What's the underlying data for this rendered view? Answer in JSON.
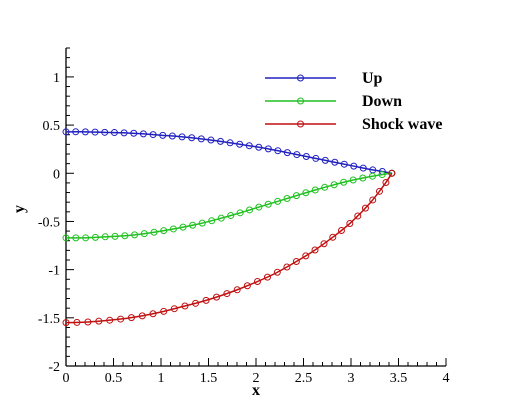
{
  "chart_data": {
    "type": "line",
    "title": "",
    "xlabel": "x",
    "ylabel": "y",
    "xlim": [
      0,
      4
    ],
    "ylim": [
      -2,
      1.3
    ],
    "xticks": [
      0,
      0.5,
      1,
      1.5,
      2,
      2.5,
      3,
      3.5,
      4
    ],
    "xtick_labels": [
      "0",
      "0.5",
      "1",
      "1.5",
      "2",
      "2.5",
      "3",
      "3.5",
      "4"
    ],
    "yticks": [
      -2,
      -1.5,
      -1,
      -0.5,
      0,
      0.5,
      1
    ],
    "ytick_labels": [
      "-2",
      "-1.5",
      "-1",
      "-0.5",
      "0",
      "0.5",
      "1"
    ],
    "grid": false,
    "legend_position": "top-right",
    "series": [
      {
        "name": "Up",
        "color": "#2020c0",
        "x": [
          0,
          0.2,
          0.4,
          0.6,
          0.8,
          1.0,
          1.2,
          1.4,
          1.6,
          1.8,
          2.0,
          2.2,
          2.4,
          2.6,
          2.8,
          3.0,
          3.2,
          3.35,
          3.43
        ],
        "y": [
          0.43,
          0.43,
          0.425,
          0.42,
          0.41,
          0.395,
          0.38,
          0.36,
          0.335,
          0.305,
          0.275,
          0.24,
          0.2,
          0.16,
          0.12,
          0.08,
          0.04,
          0.015,
          0.0
        ]
      },
      {
        "name": "Down",
        "color": "#20c020",
        "x": [
          0,
          0.2,
          0.4,
          0.6,
          0.8,
          1.0,
          1.2,
          1.4,
          1.6,
          1.8,
          2.0,
          2.2,
          2.4,
          2.6,
          2.8,
          3.0,
          3.2,
          3.35,
          3.43
        ],
        "y": [
          -0.67,
          -0.67,
          -0.66,
          -0.65,
          -0.63,
          -0.6,
          -0.565,
          -0.525,
          -0.475,
          -0.42,
          -0.36,
          -0.3,
          -0.24,
          -0.18,
          -0.125,
          -0.075,
          -0.035,
          -0.01,
          0.0
        ]
      },
      {
        "name": "Shock wave",
        "color": "#c01010",
        "x": [
          0,
          0.2,
          0.4,
          0.6,
          0.8,
          1.0,
          1.2,
          1.4,
          1.6,
          1.8,
          2.0,
          2.2,
          2.4,
          2.6,
          2.8,
          3.0,
          3.2,
          3.35,
          3.43
        ],
        "y": [
          -1.55,
          -1.545,
          -1.53,
          -1.51,
          -1.48,
          -1.44,
          -1.39,
          -1.34,
          -1.28,
          -1.21,
          -1.13,
          -1.04,
          -0.93,
          -0.81,
          -0.67,
          -0.51,
          -0.31,
          -0.12,
          0.0
        ]
      }
    ]
  }
}
